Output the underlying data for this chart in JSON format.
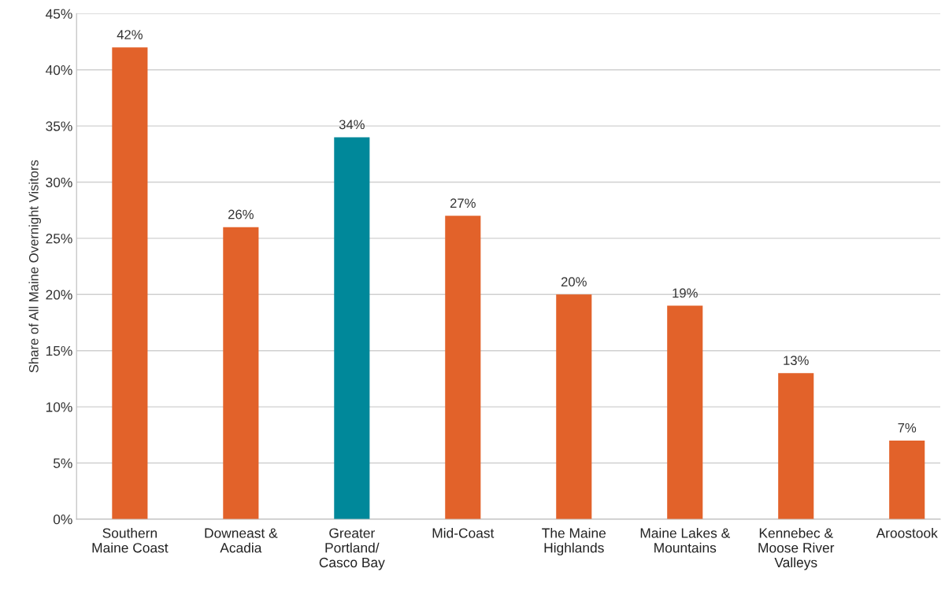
{
  "chart_data": {
    "type": "bar",
    "ylabel": "Share of All Maine Overnight Visitors",
    "categories": [
      "Southern\nMaine Coast",
      "Downeast &\nAcadia",
      "Greater\nPortland/\nCasco Bay",
      "Mid-Coast",
      "The Maine\nHighlands",
      "Maine Lakes &\nMountains",
      "Kennebec &\nMoose River\nValleys",
      "Aroostook"
    ],
    "values": [
      42,
      26,
      34,
      27,
      20,
      19,
      13,
      7
    ],
    "colors": [
      "#e2622a",
      "#e2622a",
      "#00889a",
      "#e2622a",
      "#e2622a",
      "#e2622a",
      "#e2622a",
      "#e2622a"
    ],
    "value_labels": [
      "42%",
      "26%",
      "34%",
      "27%",
      "20%",
      "19%",
      "13%",
      "7%"
    ],
    "ylim": [
      0,
      45
    ],
    "yticks": [
      {
        "value": 0,
        "label": "0%"
      },
      {
        "value": 5,
        "label": "5%"
      },
      {
        "value": 10,
        "label": "10%"
      },
      {
        "value": 15,
        "label": "15%"
      },
      {
        "value": 20,
        "label": "20%"
      },
      {
        "value": 25,
        "label": "25%"
      },
      {
        "value": 30,
        "label": "30%"
      },
      {
        "value": 35,
        "label": "35%"
      },
      {
        "value": 40,
        "label": "40%"
      },
      {
        "value": 45,
        "label": "45%"
      }
    ],
    "grid": "y"
  }
}
